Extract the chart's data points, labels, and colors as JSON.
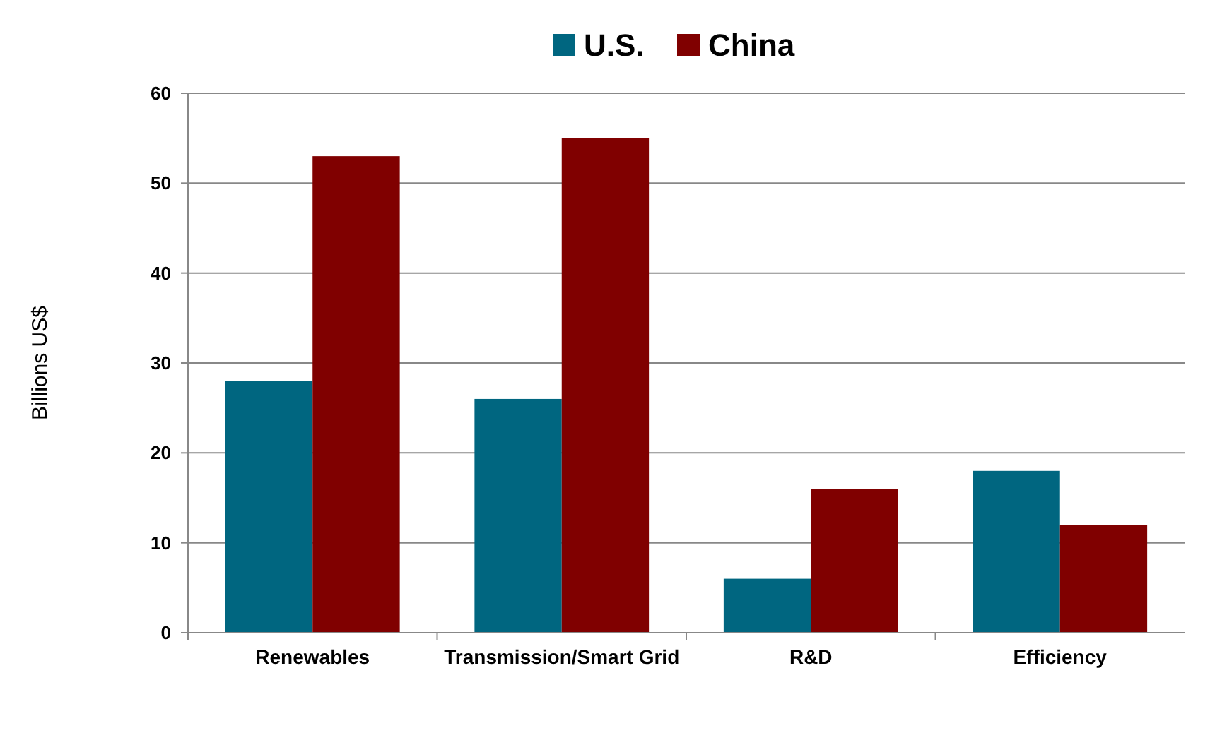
{
  "chart_data": {
    "type": "bar",
    "ylabel": "Billions US$",
    "categories": [
      "Renewables",
      "Transmission/Smart Grid",
      "R&D",
      "Efficiency"
    ],
    "series": [
      {
        "name": "U.S.",
        "color": "#006680",
        "values": [
          28,
          26,
          6,
          18
        ]
      },
      {
        "name": "China",
        "color": "#800000",
        "values": [
          53,
          55,
          16,
          12
        ]
      }
    ],
    "ylim": [
      0,
      60
    ],
    "yticks": [
      0,
      10,
      20,
      30,
      40,
      50,
      60
    ],
    "grid": "y",
    "legend": "top"
  }
}
